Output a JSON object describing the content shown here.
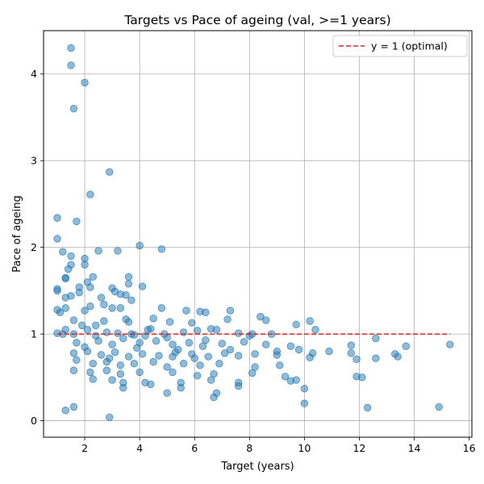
{
  "chart_data": {
    "type": "scatter",
    "title": "Targets vs Pace of ageing (val, >=1 years)",
    "xlabel": "Target (years)",
    "ylabel": "Pace of ageing",
    "xlim": [
      0.5,
      16.1
    ],
    "ylim": [
      -0.19,
      4.5
    ],
    "xticks": [
      2,
      4,
      6,
      8,
      10,
      12,
      14,
      16
    ],
    "yticks": [
      0,
      1,
      2,
      3,
      4
    ],
    "grid": true,
    "legend_position": "top-right",
    "reference_line": {
      "name": "y = 1 (optimal)",
      "y": 1,
      "x_range": [
        1.0,
        15.3
      ],
      "color": "#d62728",
      "style": "dashed"
    },
    "point_color": "#1f77b4",
    "points": [
      [
        1.5,
        4.3
      ],
      [
        1.5,
        4.1
      ],
      [
        2.0,
        3.9
      ],
      [
        1.6,
        3.6
      ],
      [
        2.9,
        2.87
      ],
      [
        2.2,
        2.61
      ],
      [
        1.0,
        2.34
      ],
      [
        1.7,
        2.3
      ],
      [
        1.0,
        2.1
      ],
      [
        4.0,
        2.02
      ],
      [
        4.8,
        1.98
      ],
      [
        2.5,
        1.96
      ],
      [
        3.2,
        1.96
      ],
      [
        1.2,
        1.95
      ],
      [
        1.5,
        1.9
      ],
      [
        2.0,
        1.87
      ],
      [
        1.5,
        1.8
      ],
      [
        2.0,
        1.8
      ],
      [
        1.4,
        1.75
      ],
      [
        1.3,
        1.65
      ],
      [
        2.3,
        1.66
      ],
      [
        1.3,
        1.64
      ],
      [
        3.6,
        1.66
      ],
      [
        4.1,
        1.55
      ],
      [
        3.6,
        1.58
      ],
      [
        1.8,
        1.54
      ],
      [
        2.2,
        1.54
      ],
      [
        1.0,
        1.52
      ],
      [
        1.0,
        1.5
      ],
      [
        1.8,
        1.48
      ],
      [
        3.0,
        1.53
      ],
      [
        3.1,
        1.49
      ],
      [
        3.3,
        1.46
      ],
      [
        2.1,
        1.6
      ],
      [
        1.3,
        1.42
      ],
      [
        1.5,
        1.44
      ],
      [
        2.6,
        1.42
      ],
      [
        3.5,
        1.45
      ],
      [
        3.7,
        1.39
      ],
      [
        2.7,
        1.34
      ],
      [
        3.0,
        1.3
      ],
      [
        3.3,
        1.3
      ],
      [
        1.0,
        1.28
      ],
      [
        1.3,
        1.3
      ],
      [
        1.1,
        1.25
      ],
      [
        2.0,
        1.27
      ],
      [
        2.2,
        1.32
      ],
      [
        4.8,
        1.3
      ],
      [
        5.7,
        1.27
      ],
      [
        6.2,
        1.26
      ],
      [
        6.4,
        1.25
      ],
      [
        7.3,
        1.27
      ],
      [
        8.4,
        1.2
      ],
      [
        8.6,
        1.16
      ],
      [
        10.2,
        1.15
      ],
      [
        1.6,
        1.16
      ],
      [
        1.9,
        1.1
      ],
      [
        2.7,
        1.15
      ],
      [
        3.6,
        1.14
      ],
      [
        4.5,
        1.18
      ],
      [
        5.1,
        1.14
      ],
      [
        5.9,
        1.13
      ],
      [
        7.2,
        1.17
      ],
      [
        9.7,
        1.11
      ],
      [
        1.0,
        1.01
      ],
      [
        1.2,
        1.0
      ],
      [
        1.3,
        1.05
      ],
      [
        1.6,
        1.0
      ],
      [
        2.1,
        1.05
      ],
      [
        2.4,
        0.98
      ],
      [
        2.8,
        1.02
      ],
      [
        3.2,
        1.01
      ],
      [
        3.8,
        0.99
      ],
      [
        4.3,
        1.05
      ],
      [
        4.9,
        1.0
      ],
      [
        5.6,
        1.02
      ],
      [
        6.1,
        1.04
      ],
      [
        6.8,
        1.05
      ],
      [
        7.6,
        1.01
      ],
      [
        8.1,
        1.0
      ],
      [
        8.8,
        1.0
      ],
      [
        10.4,
        1.05
      ],
      [
        1.7,
        0.9
      ],
      [
        2.0,
        0.85
      ],
      [
        2.5,
        0.92
      ],
      [
        3.0,
        0.88
      ],
      [
        3.4,
        0.95
      ],
      [
        4.0,
        0.9
      ],
      [
        4.6,
        0.92
      ],
      [
        5.2,
        0.88
      ],
      [
        5.8,
        0.9
      ],
      [
        6.4,
        0.93
      ],
      [
        7.0,
        0.89
      ],
      [
        7.8,
        0.91
      ],
      [
        8.6,
        0.88
      ],
      [
        9.5,
        0.86
      ],
      [
        11.7,
        0.87
      ],
      [
        12.6,
        0.95
      ],
      [
        13.7,
        0.86
      ],
      [
        1.6,
        0.78
      ],
      [
        2.1,
        0.8
      ],
      [
        2.6,
        0.76
      ],
      [
        3.1,
        0.79
      ],
      [
        3.6,
        0.74
      ],
      [
        4.1,
        0.77
      ],
      [
        4.7,
        0.75
      ],
      [
        5.3,
        0.79
      ],
      [
        5.9,
        0.77
      ],
      [
        6.5,
        0.74
      ],
      [
        7.1,
        0.78
      ],
      [
        7.6,
        0.75
      ],
      [
        8.2,
        0.77
      ],
      [
        9.0,
        0.76
      ],
      [
        9.8,
        0.82
      ],
      [
        10.3,
        0.78
      ],
      [
        10.9,
        0.8
      ],
      [
        11.7,
        0.78
      ],
      [
        13.3,
        0.77
      ],
      [
        1.7,
        0.7
      ],
      [
        2.3,
        0.66
      ],
      [
        2.8,
        0.68
      ],
      [
        3.3,
        0.64
      ],
      [
        3.8,
        0.66
      ],
      [
        4.5,
        0.68
      ],
      [
        5.0,
        0.62
      ],
      [
        5.6,
        0.66
      ],
      [
        6.2,
        0.64
      ],
      [
        6.9,
        0.66
      ],
      [
        8.2,
        0.62
      ],
      [
        9.1,
        0.64
      ],
      [
        11.9,
        0.71
      ],
      [
        12.6,
        0.72
      ],
      [
        13.4,
        0.74
      ],
      [
        1.6,
        0.58
      ],
      [
        2.2,
        0.56
      ],
      [
        2.8,
        0.58
      ],
      [
        3.3,
        0.54
      ],
      [
        4.0,
        0.56
      ],
      [
        5.2,
        0.56
      ],
      [
        6.1,
        0.52
      ],
      [
        6.7,
        0.54
      ],
      [
        8.1,
        0.55
      ],
      [
        9.3,
        0.51
      ],
      [
        11.9,
        0.51
      ],
      [
        12.1,
        0.5
      ],
      [
        2.3,
        0.48
      ],
      [
        3.0,
        0.47
      ],
      [
        3.4,
        0.44
      ],
      [
        4.2,
        0.44
      ],
      [
        4.4,
        0.42
      ],
      [
        5.5,
        0.44
      ],
      [
        6.6,
        0.47
      ],
      [
        7.6,
        0.44
      ],
      [
        9.5,
        0.46
      ],
      [
        9.7,
        0.47
      ],
      [
        3.4,
        0.38
      ],
      [
        5.5,
        0.38
      ],
      [
        7.6,
        0.4
      ],
      [
        10.0,
        0.37
      ],
      [
        5.0,
        0.32
      ],
      [
        6.8,
        0.32
      ],
      [
        6.7,
        0.27
      ],
      [
        10.0,
        0.2
      ],
      [
        1.6,
        0.16
      ],
      [
        12.3,
        0.15
      ],
      [
        14.9,
        0.16
      ],
      [
        1.3,
        0.12
      ],
      [
        2.9,
        0.04
      ],
      [
        15.3,
        0.88
      ],
      [
        4.4,
        1.06
      ],
      [
        5.0,
        0.96
      ],
      [
        5.4,
        0.82
      ],
      [
        6.3,
        0.86
      ],
      [
        3.9,
        0.84
      ],
      [
        2.4,
        1.1
      ],
      [
        3.5,
        1.17
      ],
      [
        4.2,
        0.98
      ],
      [
        6.6,
        1.06
      ],
      [
        8.0,
        0.98
      ],
      [
        9.0,
        0.8
      ],
      [
        10.2,
        0.73
      ],
      [
        3.7,
        1.0
      ],
      [
        2.9,
        0.72
      ],
      [
        5.2,
        0.74
      ],
      [
        6.0,
        0.72
      ],
      [
        7.3,
        0.82
      ]
    ]
  }
}
